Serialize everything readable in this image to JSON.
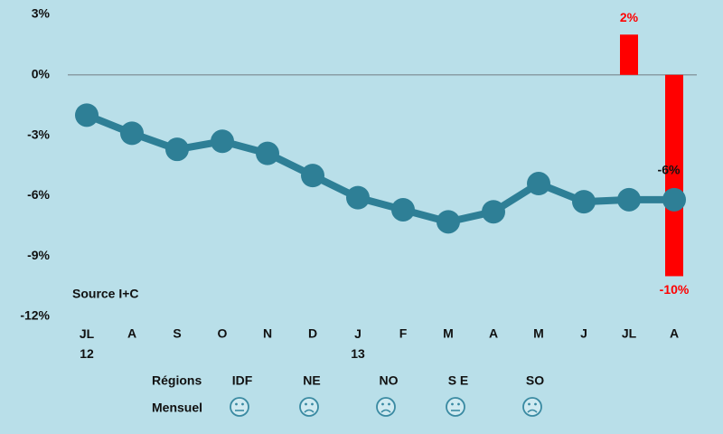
{
  "chart_data": {
    "type": "line",
    "categories": [
      "JL 12",
      "A",
      "S",
      "O",
      "N",
      "D",
      "J 13",
      "F",
      "M",
      "A",
      "M",
      "J",
      "JL",
      "A"
    ],
    "series": [
      {
        "type": "line",
        "color": "#2e7f96",
        "values": [
          -2.0,
          -2.9,
          -3.7,
          -3.3,
          -3.9,
          -5.0,
          -6.1,
          -6.7,
          -7.3,
          -6.8,
          -5.4,
          -6.3,
          -6.2,
          -6.2
        ],
        "value_labels": [
          null,
          null,
          null,
          null,
          null,
          null,
          null,
          null,
          null,
          null,
          null,
          null,
          null,
          "-6%"
        ]
      },
      {
        "type": "bar",
        "color": "#ff0000",
        "values": [
          null,
          null,
          null,
          null,
          null,
          null,
          null,
          null,
          null,
          null,
          null,
          null,
          2,
          -10
        ],
        "value_labels": [
          null,
          null,
          null,
          null,
          null,
          null,
          null,
          null,
          null,
          null,
          null,
          null,
          "2%",
          "-10%"
        ]
      }
    ],
    "ylim": [
      -12,
      3
    ],
    "yticks": [
      {
        "value": -12,
        "label": "-12%"
      },
      {
        "value": -9,
        "label": "-9%"
      },
      {
        "value": -6,
        "label": "-6%"
      },
      {
        "value": -3,
        "label": "-3%"
      },
      {
        "value": 0,
        "label": "0%"
      },
      {
        "value": 3,
        "label": "3%"
      }
    ],
    "annotation": "Source I+C"
  },
  "regions": {
    "label": "Régions",
    "names": [
      "IDF",
      "NE",
      "NO",
      "S E",
      "SO"
    ]
  },
  "monthly": {
    "label": "Mensuel",
    "moods": [
      "neutral",
      "sad",
      "sad",
      "neutral",
      "sad"
    ]
  }
}
